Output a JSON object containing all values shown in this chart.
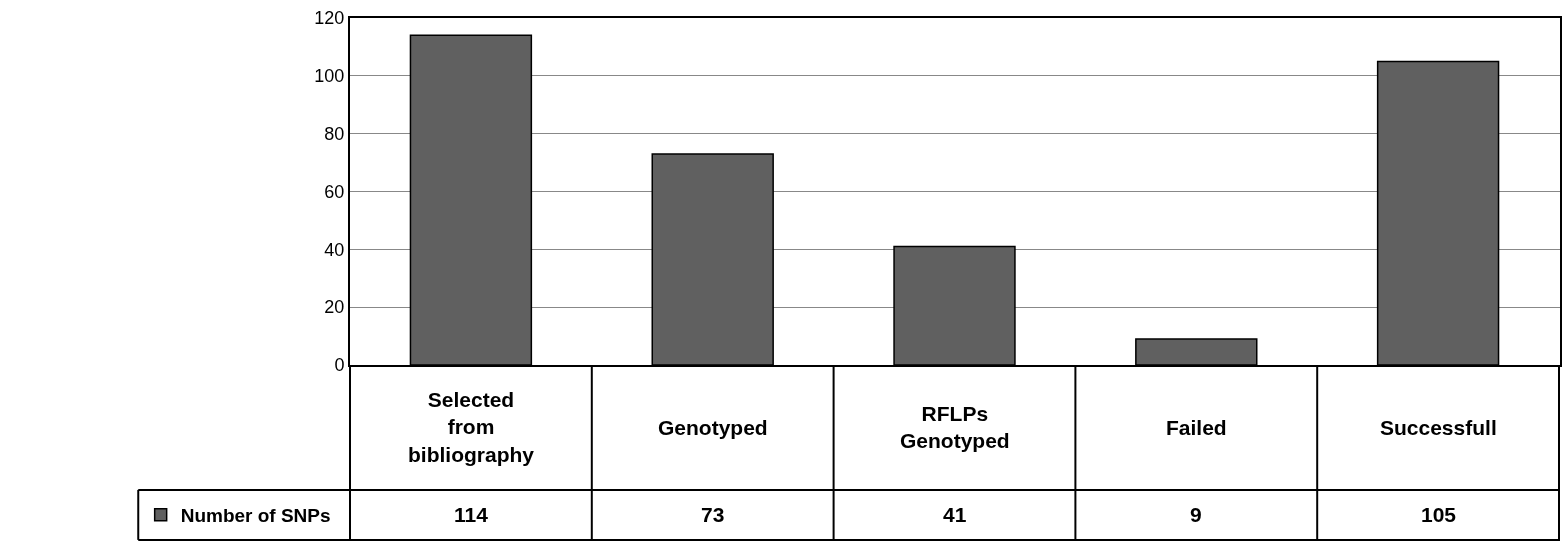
{
  "chart_data": {
    "type": "bar",
    "categories": [
      "Selected from bibliography",
      "Genotyped",
      "RFLPs Genotyped",
      "Failed",
      "Successfull"
    ],
    "series": [
      {
        "name": "Number of SNPs",
        "color": "#606060",
        "values": [
          114,
          73,
          41,
          9,
          105
        ]
      }
    ],
    "ylim": [
      0,
      120
    ],
    "yticks": [
      0,
      20,
      40,
      60,
      80,
      100,
      120
    ],
    "grid": "y",
    "legend": "bottom left",
    "data_labels": true
  }
}
